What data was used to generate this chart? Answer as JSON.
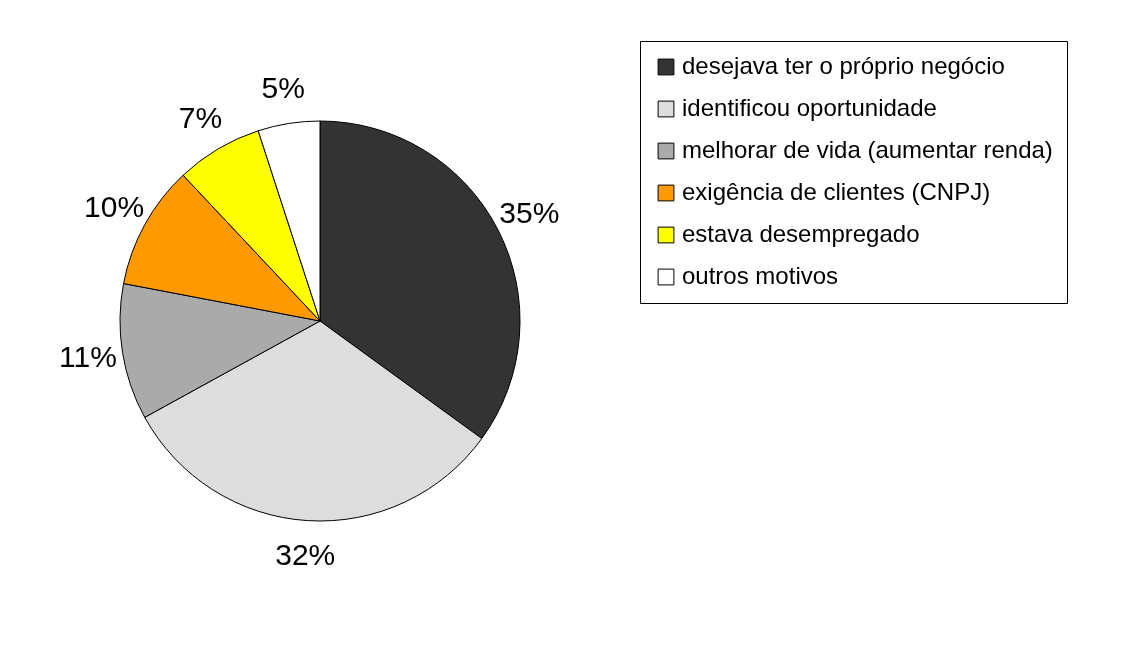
{
  "chart_data": {
    "type": "pie",
    "categories": [
      "desejava ter o próprio negócio",
      "identificou oportunidade",
      "melhorar de vida (aumentar renda)",
      "exigência de clientes (CNPJ)",
      "estava desempregado",
      "outros motivos"
    ],
    "values": [
      35,
      32,
      11,
      10,
      7,
      5
    ],
    "colors": [
      "#333333",
      "#dddddd",
      "#aaaaaa",
      "#ff9900",
      "#ffff00",
      "#ffffff"
    ],
    "value_labels": [
      "35%",
      "32%",
      "11%",
      "10%",
      "7%",
      "5%"
    ],
    "legend": "right"
  }
}
